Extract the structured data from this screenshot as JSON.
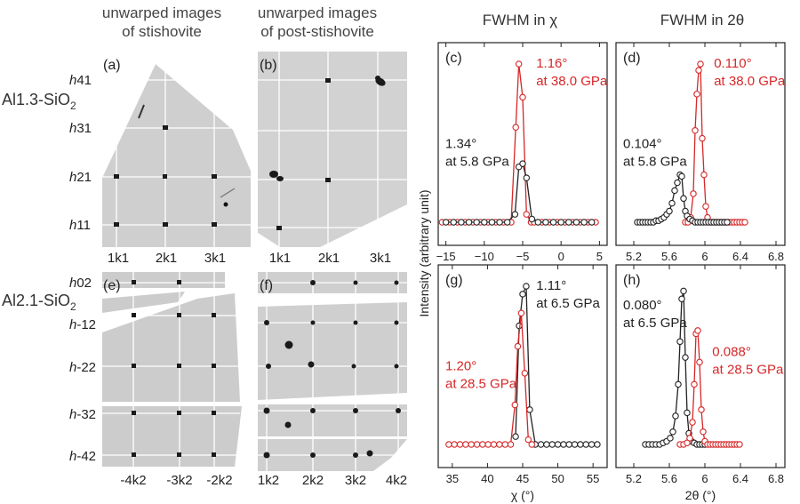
{
  "headers": {
    "col_a": [
      "unwarped images",
      "of stishovite"
    ],
    "col_b": [
      "unwarped images",
      "of post-stishovite"
    ],
    "chi": "FWHM in χ",
    "twotheta": "FWHM in 2θ"
  },
  "samples": {
    "top": "Al1.3-SiO",
    "top_sub": "2",
    "bottom": "Al2.1-SiO",
    "bottom_sub": "2"
  },
  "panel_letters": [
    "(a)",
    "(b)",
    "(c)",
    "(d)",
    "(e)",
    "(f)",
    "(g)",
    "(h)"
  ],
  "image_labels": {
    "top_rows": [
      "41",
      "31",
      "21",
      "11"
    ],
    "top_cols": [
      "1k1",
      "2k1",
      "3k1"
    ],
    "bottom_rows": [
      "02",
      "-12",
      "-22",
      "-32",
      "-42"
    ],
    "e_cols": [
      "-4k2",
      "-3k2",
      "-2k2"
    ],
    "f_cols": [
      "1k2",
      "2k2",
      "3k2",
      "4k2"
    ],
    "h_letter": "h"
  },
  "ylabel": "Intensity (arbitrary unit)",
  "chart_data": [
    {
      "panel": "(c)",
      "type": "line",
      "xlim": [
        -16,
        6
      ],
      "xticks": [
        -15,
        -10,
        -5,
        0,
        5
      ],
      "show_xlabels": true,
      "series": [
        {
          "color": "#d62728",
          "x": [
            -15.5,
            -14.5,
            -13.5,
            -12.5,
            -11.5,
            -10.5,
            -9.5,
            -8.5,
            -7.5,
            -6.5,
            -5.9,
            -5.5,
            -5.0,
            -4.5,
            -3.9,
            -3.5,
            -2.5,
            -1.5,
            -0.5,
            0.5,
            1.5,
            2.5,
            3.5,
            4.5
          ],
          "y": [
            0,
            0,
            0,
            0,
            0,
            0,
            0,
            0,
            0,
            0,
            0.6,
            1.0,
            0.79,
            0.05,
            0,
            0,
            0,
            0,
            0,
            0,
            0,
            0,
            0,
            0
          ]
        },
        {
          "color": "#222222",
          "x": [
            -15.0,
            -14.0,
            -13.0,
            -12.0,
            -11.0,
            -10.0,
            -9.0,
            -8.0,
            -7.0,
            -6.0,
            -5.5,
            -5.0,
            -4.5,
            -3.8,
            -3.0,
            -2.0,
            -1.0,
            0.0,
            1.0,
            2.0,
            3.0,
            4.0
          ],
          "y": [
            0,
            0,
            0,
            0,
            0,
            0,
            0,
            0,
            0,
            0.05,
            0.35,
            0.37,
            0.28,
            0.02,
            0,
            0,
            0,
            0,
            0,
            0,
            0,
            0
          ]
        }
      ],
      "annotations": [
        {
          "lines": [
            "1.16°",
            "at 38.0 GPa"
          ],
          "color": "#d62728",
          "at": "upper-right"
        },
        {
          "lines": [
            "1.34°",
            "at 5.8 GPa"
          ],
          "color": "#222222",
          "at": "middle-left"
        }
      ]
    },
    {
      "panel": "(d)",
      "type": "line",
      "xlim": [
        5.0,
        6.9
      ],
      "xticks": [
        5.2,
        5.6,
        6.0,
        6.4,
        6.8
      ],
      "show_xlabels": true,
      "series": [
        {
          "color": "#d62728",
          "x": [
            5.78,
            5.81,
            5.84,
            5.87,
            5.89,
            5.91,
            5.93,
            5.95,
            5.97,
            5.99,
            6.01,
            6.03,
            6.06,
            6.09,
            6.12,
            6.15,
            6.18,
            6.21,
            6.24,
            6.27,
            6.3,
            6.33,
            6.36,
            6.39,
            6.42,
            6.45
          ],
          "y": [
            0,
            0,
            0.03,
            0.18,
            0.58,
            0.81,
            0.96,
            1.0,
            0.53,
            0.3,
            0.1,
            0.03,
            0,
            0,
            0,
            0,
            0,
            0,
            0,
            0,
            0,
            0,
            0,
            0,
            0,
            0
          ]
        },
        {
          "color": "#222222",
          "x": [
            5.24,
            5.27,
            5.3,
            5.33,
            5.36,
            5.39,
            5.42,
            5.45,
            5.48,
            5.51,
            5.54,
            5.57,
            5.6,
            5.63,
            5.66,
            5.69,
            5.72,
            5.74,
            5.76,
            5.78,
            5.8,
            5.83,
            5.86,
            5.89,
            5.92,
            5.95,
            5.98,
            6.01,
            6.04,
            6.07,
            6.1,
            6.13,
            6.16,
            6.19,
            6.22,
            6.25
          ],
          "y": [
            0,
            0,
            0,
            0,
            0,
            0,
            0,
            0.01,
            0.01,
            0.02,
            0.03,
            0.05,
            0.07,
            0.12,
            0.2,
            0.25,
            0.3,
            0.29,
            0.15,
            0.07,
            0.04,
            0.02,
            0.01,
            0,
            0,
            0,
            0,
            0,
            0,
            0,
            0,
            0,
            0,
            0,
            0,
            0
          ]
        }
      ],
      "annotations": [
        {
          "lines": [
            "0.110°",
            "at 38.0 GPa"
          ],
          "color": "#d62728",
          "at": "upper-right"
        },
        {
          "lines": [
            "0.104°",
            "at 5.8 GPa"
          ],
          "color": "#222222",
          "at": "middle-left"
        }
      ]
    },
    {
      "panel": "(g)",
      "type": "line",
      "xlim": [
        33,
        57
      ],
      "xticks": [
        35,
        40,
        45,
        50,
        55
      ],
      "show_xlabels": true,
      "xlabel": "χ (°)",
      "series": [
        {
          "color": "#222222",
          "x": [
            46.8,
            47.6,
            48.4,
            49.2,
            50.0,
            50.8,
            51.6,
            52.4,
            53.2,
            54.0,
            54.8,
            55.6,
            44.0,
            44.5,
            45.0,
            45.5,
            46.0
          ],
          "y": [
            0,
            0,
            0,
            0,
            0,
            0,
            0,
            0,
            0,
            0,
            0,
            0,
            0.05,
            0.75,
            0.95,
            1.0,
            0.22
          ]
        },
        {
          "color": "#d62728",
          "x": [
            34.5,
            35.3,
            36.1,
            36.9,
            37.7,
            38.5,
            39.3,
            40.1,
            40.9,
            41.7,
            42.5,
            43.3,
            43.9,
            44.3,
            44.8,
            45.3,
            45.8,
            46.3
          ],
          "y": [
            0,
            0,
            0,
            0,
            0,
            0,
            0,
            0,
            0,
            0,
            0,
            0,
            0.25,
            0.62,
            0.83,
            0.45,
            0.03,
            0
          ]
        }
      ],
      "annotations": [
        {
          "lines": [
            "1.11°",
            "at 6.5 GPa"
          ],
          "color": "#222222",
          "at": "upper-right"
        },
        {
          "lines": [
            "1.20°",
            "at 28.5 GPa"
          ],
          "color": "#d62728",
          "at": "middle-left"
        }
      ]
    },
    {
      "panel": "(h)",
      "type": "line",
      "xlim": [
        5.0,
        6.9
      ],
      "xticks": [
        5.2,
        5.6,
        6.0,
        6.4,
        6.8
      ],
      "show_xlabels": true,
      "xlabel": "2θ (°)",
      "series": [
        {
          "color": "#222222",
          "x": [
            5.33,
            5.37,
            5.41,
            5.45,
            5.49,
            5.53,
            5.57,
            5.61,
            5.64,
            5.67,
            5.7,
            5.72,
            5.74,
            5.76,
            5.78,
            5.8,
            5.82,
            5.85,
            5.88,
            5.91,
            5.94,
            5.97,
            6.0
          ],
          "y": [
            0,
            0,
            0,
            0,
            0,
            0.01,
            0.02,
            0.04,
            0.08,
            0.18,
            0.38,
            0.65,
            0.92,
            0.97,
            0.55,
            0.2,
            0.07,
            0.02,
            0.01,
            0,
            0,
            0,
            0
          ]
        },
        {
          "color": "#d62728",
          "x": [
            5.72,
            5.76,
            5.8,
            5.83,
            5.86,
            5.88,
            5.9,
            5.92,
            5.94,
            5.96,
            5.98,
            6.0,
            6.03,
            6.06,
            6.09,
            6.12,
            6.15,
            6.18,
            6.21,
            6.24,
            6.27,
            6.3,
            6.33,
            6.36,
            6.39
          ],
          "y": [
            0,
            0,
            0.01,
            0.04,
            0.14,
            0.38,
            0.7,
            0.72,
            0.52,
            0.22,
            0.08,
            0.02,
            0,
            0,
            0,
            0,
            0,
            0,
            0,
            0,
            0,
            0,
            0,
            0,
            0
          ]
        }
      ],
      "annotations": [
        {
          "lines": [
            "0.080°",
            "at 6.5 GPa"
          ],
          "color": "#222222",
          "at": "upper-left"
        },
        {
          "lines": [
            "0.088°",
            "at 28.5 GPa"
          ],
          "color": "#d62728",
          "at": "middle-right"
        }
      ]
    }
  ]
}
